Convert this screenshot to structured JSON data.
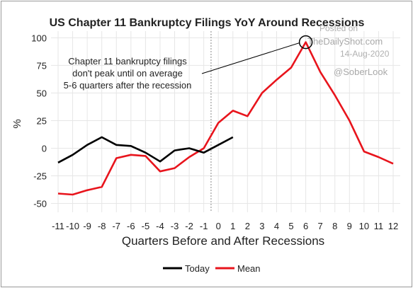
{
  "chart_data": {
    "type": "line",
    "title": "US Chapter 11 Bankruptcy Filings YoY Around Recessions",
    "xlabel": "Quarters Before and After Recessions",
    "ylabel": "%",
    "x": [
      -11,
      -10,
      -9,
      -8,
      -7,
      -6,
      -5,
      -4,
      -3,
      -2,
      -1,
      0,
      1,
      2,
      3,
      4,
      5,
      6,
      7,
      8,
      9,
      10,
      11,
      12
    ],
    "x_tick_labels": [
      "-11",
      "-10",
      "-9",
      "-8",
      "-7",
      "-6",
      "-5",
      "-4",
      "-3",
      "-2",
      "-1",
      "0",
      "1",
      "2",
      "3",
      "4",
      "5",
      "6",
      "7",
      "8",
      "9",
      "10",
      "11",
      "12"
    ],
    "ylim": [
      -58,
      106
    ],
    "y_ticks": [
      -50,
      -25,
      0,
      25,
      50,
      75,
      100
    ],
    "y_tick_labels": [
      "-50",
      "-25",
      "0",
      "25",
      "50",
      "75",
      "100"
    ],
    "grid": true,
    "recession_marker_x": -1,
    "series": [
      {
        "name": "Today",
        "color": "#000000",
        "x": [
          -11,
          -10,
          -9,
          -8,
          -7,
          -6,
          -5,
          -4,
          -3,
          -2,
          -1,
          0,
          1
        ],
        "values": [
          -13,
          -6,
          3,
          10,
          3,
          2,
          -4,
          -12,
          -2,
          0,
          -4,
          3,
          10
        ]
      },
      {
        "name": "Mean",
        "color": "#e8141c",
        "x": [
          -11,
          -10,
          -9,
          -8,
          -7,
          -6,
          -5,
          -4,
          -3,
          -2,
          -1,
          0,
          1,
          2,
          3,
          4,
          5,
          6,
          7,
          8,
          9,
          10,
          11,
          12
        ],
        "values": [
          -41,
          -42,
          -38,
          -35,
          -9,
          -6,
          -7,
          -21,
          -18,
          -8,
          0,
          23,
          34,
          29,
          50,
          62,
          73,
          96,
          69,
          48,
          25,
          -3,
          -8,
          -14
        ]
      }
    ],
    "annotations": [
      {
        "lines": [
          "Chapter 11 bankruptcy filings",
          "don't peak until on average",
          "5-6 quarters after the recession"
        ],
        "points_to": {
          "x": 6,
          "y": 96
        }
      }
    ],
    "watermark": {
      "posted_on": "Posted on",
      "site": "TheDailyShot.com",
      "date": "14-Aug-2020",
      "handle": "@SoberLook"
    },
    "legend_placement": "bottom"
  }
}
